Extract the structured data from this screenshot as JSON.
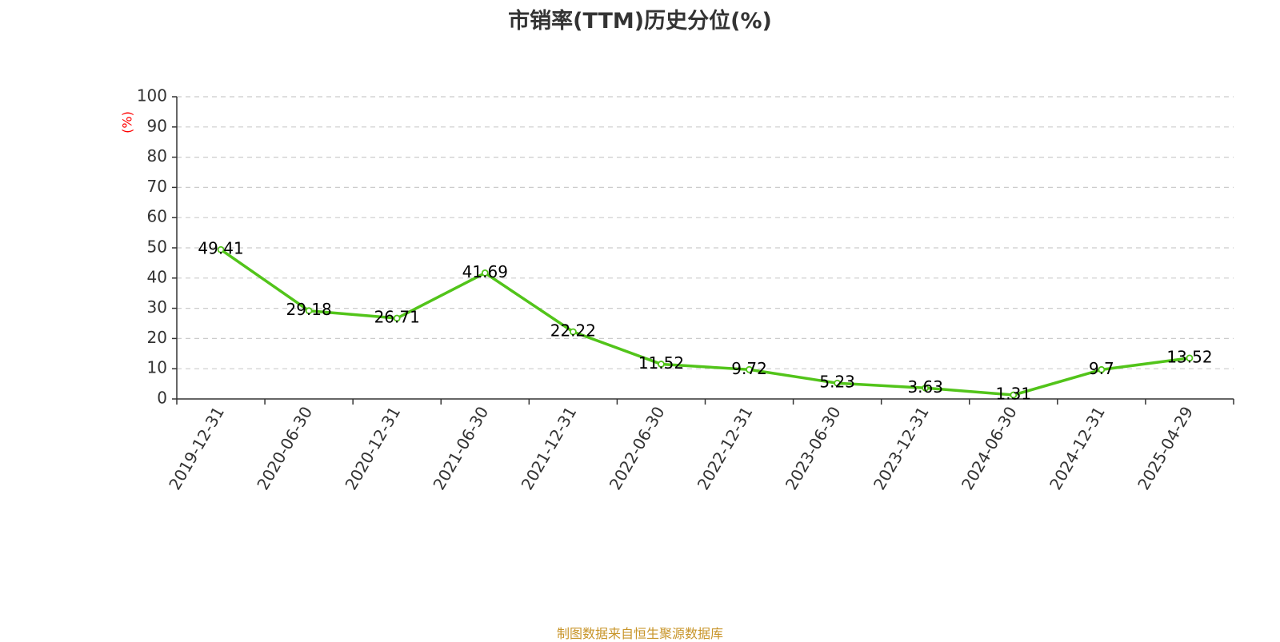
{
  "chart_data": {
    "type": "line",
    "title": "市销率(TTM)历史分位(%)",
    "ylabel": "(%)",
    "xlabel": "",
    "categories": [
      "2019-12-31",
      "2020-06-30",
      "2020-12-31",
      "2021-06-30",
      "2021-12-31",
      "2022-06-30",
      "2022-12-31",
      "2023-06-30",
      "2023-12-31",
      "2024-06-30",
      "2024-12-31",
      "2025-04-29"
    ],
    "series": [
      {
        "values": [
          49.41,
          29.18,
          26.71,
          41.69,
          22.22,
          11.52,
          9.72,
          5.23,
          3.63,
          1.31,
          9.7,
          13.52
        ]
      }
    ],
    "data_labels": [
      "49.41",
      "29.18",
      "26.71",
      "41.69",
      "22.22",
      "11.52",
      "9.72",
      "5.23",
      "3.63",
      "1.31",
      "9.7",
      "13.52"
    ],
    "yticks": [
      "0",
      "10",
      "20",
      "30",
      "40",
      "50",
      "60",
      "70",
      "80",
      "90",
      "100"
    ],
    "ylim": [
      0,
      100
    ],
    "grid": true,
    "legend": "none",
    "colors": {
      "line": "#52c41a",
      "ylabel": "#ff0000",
      "axis": "#333333",
      "grid": "#cccccc"
    }
  },
  "footer": {
    "source": "制图数据来自恒生聚源数据库"
  }
}
